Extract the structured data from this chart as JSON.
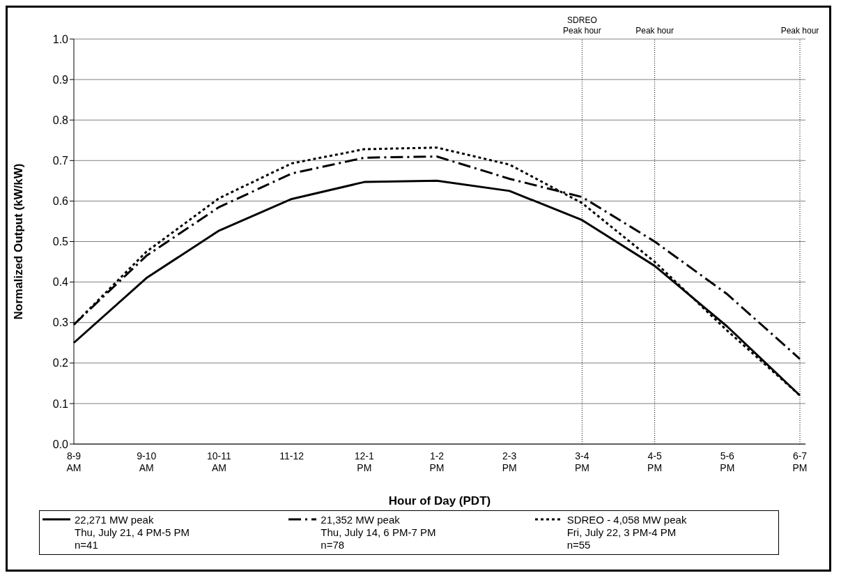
{
  "chart_data": {
    "type": "line",
    "xlabel": "Hour of Day (PDT)",
    "ylabel": "Normalized Output (kW/kW)",
    "categories": [
      "8-9\nAM",
      "9-10\nAM",
      "10-11\nAM",
      "11-12",
      "12-1\nPM",
      "1-2\nPM",
      "2-3\nPM",
      "3-4\nPM",
      "4-5\nPM",
      "5-6\nPM",
      "6-7\nPM"
    ],
    "series": [
      {
        "name": "22,271 MW peak\nThu, July 21, 4 PM-5 PM\nn=41",
        "color": "#000000",
        "line_style": "solid",
        "values": [
          0.25,
          0.41,
          0.527,
          0.605,
          0.647,
          0.65,
          0.625,
          0.553,
          0.44,
          0.29,
          0.12
        ]
      },
      {
        "name": "21,352 MW peak\nThu, July 14, 6 PM-7 PM\nn=78",
        "color": "#000000",
        "line_style": "dashed",
        "values": [
          0.295,
          0.465,
          0.585,
          0.668,
          0.707,
          0.71,
          0.655,
          0.61,
          0.5,
          0.37,
          0.21
        ]
      },
      {
        "name": "SDREO - 4,058 MW peak\nFri, July 22, 3 PM-4 PM\nn=55",
        "color": "#000000",
        "line_style": "dotted",
        "values": [
          0.295,
          0.475,
          0.607,
          0.693,
          0.728,
          0.732,
          0.69,
          0.595,
          0.45,
          0.28,
          0.12
        ]
      }
    ],
    "ylim": [
      0,
      1
    ],
    "yticks": [
      {
        "value": 0,
        "label": "0.0"
      },
      {
        "value": 0.1,
        "label": "0.1"
      },
      {
        "value": 0.2,
        "label": "0.2"
      },
      {
        "value": 0.3,
        "label": "0.3"
      },
      {
        "value": 0.4,
        "label": "0.4"
      },
      {
        "value": 0.5,
        "label": "0.5"
      },
      {
        "value": 0.6,
        "label": "0.6"
      },
      {
        "value": 0.7,
        "label": "0.7"
      },
      {
        "value": 0.8,
        "label": "0.8"
      },
      {
        "value": 0.9,
        "label": "0.9"
      },
      {
        "value": 1,
        "label": "1.0"
      }
    ],
    "grid": "y",
    "legend": "bottom",
    "marker": "none",
    "ref_lines": [
      {
        "axis": "x",
        "value": "3-4\nPM",
        "label": "SDREO\nPeak hour",
        "line_style": "dotted",
        "color": "#000000"
      },
      {
        "axis": "x",
        "value": "4-5\nPM",
        "label": "Peak hour",
        "line_style": "dotted",
        "color": "#000000"
      },
      {
        "axis": "x",
        "value": "6-7\nPM",
        "label": "Peak hour",
        "line_style": "dotted",
        "color": "#000000"
      }
    ]
  }
}
